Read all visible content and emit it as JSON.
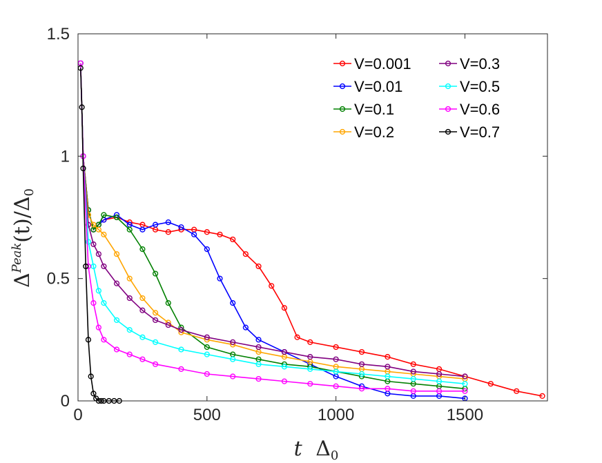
{
  "chart_data": {
    "type": "line",
    "xlabel": "t Δ₀",
    "ylabel": "Δ^Peak(t)/Δ₀",
    "xlim": [
      0,
      1820
    ],
    "ylim": [
      0,
      1.5
    ],
    "xticks": [
      0,
      500,
      1000,
      1500
    ],
    "yticks": [
      0,
      0.5,
      1,
      1.5
    ],
    "xtick_labels": [
      "0",
      "500",
      "1000",
      "1500"
    ],
    "ytick_labels": [
      "0",
      "0.5",
      "1",
      "1.5"
    ],
    "grid": false,
    "legend_position": "top-right",
    "legend_columns": 2,
    "series": [
      {
        "name": "V=0.001",
        "color": "#ff0000",
        "x": [
          10,
          20,
          40,
          60,
          80,
          100,
          150,
          200,
          250,
          300,
          350,
          400,
          450,
          500,
          550,
          600,
          650,
          700,
          750,
          800,
          850,
          900,
          1000,
          1100,
          1200,
          1300,
          1400,
          1500,
          1600,
          1700,
          1800
        ],
        "y": [
          1.38,
          1.0,
          0.78,
          0.7,
          0.72,
          0.74,
          0.75,
          0.73,
          0.72,
          0.7,
          0.69,
          0.7,
          0.7,
          0.69,
          0.68,
          0.66,
          0.6,
          0.55,
          0.47,
          0.38,
          0.26,
          0.24,
          0.22,
          0.2,
          0.18,
          0.15,
          0.13,
          0.1,
          0.07,
          0.04,
          0.02
        ]
      },
      {
        "name": "V=0.01",
        "color": "#0000ff",
        "x": [
          10,
          20,
          40,
          60,
          80,
          100,
          150,
          200,
          250,
          300,
          350,
          400,
          450,
          500,
          550,
          600,
          650,
          700,
          800,
          900,
          1000,
          1100,
          1200,
          1300,
          1400,
          1500
        ],
        "y": [
          1.38,
          1.0,
          0.78,
          0.7,
          0.72,
          0.74,
          0.76,
          0.72,
          0.7,
          0.72,
          0.73,
          0.71,
          0.68,
          0.62,
          0.5,
          0.4,
          0.3,
          0.25,
          0.2,
          0.15,
          0.1,
          0.06,
          0.03,
          0.02,
          0.02,
          0.01
        ]
      },
      {
        "name": "V=0.1",
        "color": "#008000",
        "x": [
          10,
          20,
          40,
          60,
          80,
          100,
          150,
          200,
          250,
          300,
          350,
          400,
          500,
          600,
          700,
          800,
          900,
          1000,
          1100,
          1200,
          1300,
          1400,
          1500
        ],
        "y": [
          1.38,
          1.0,
          0.78,
          0.7,
          0.72,
          0.76,
          0.75,
          0.7,
          0.62,
          0.52,
          0.4,
          0.3,
          0.22,
          0.19,
          0.17,
          0.15,
          0.14,
          0.12,
          0.1,
          0.08,
          0.07,
          0.06,
          0.05
        ]
      },
      {
        "name": "V=0.2",
        "color": "#ffa500",
        "x": [
          10,
          20,
          40,
          60,
          80,
          100,
          150,
          200,
          250,
          300,
          350,
          400,
          500,
          600,
          700,
          800,
          900,
          1000,
          1100,
          1200,
          1300,
          1400,
          1500
        ],
        "y": [
          1.38,
          1.0,
          0.76,
          0.72,
          0.7,
          0.68,
          0.6,
          0.5,
          0.42,
          0.36,
          0.32,
          0.28,
          0.25,
          0.23,
          0.2,
          0.18,
          0.16,
          0.14,
          0.13,
          0.12,
          0.11,
          0.1,
          0.09
        ]
      },
      {
        "name": "V=0.3",
        "color": "#800080",
        "x": [
          10,
          20,
          40,
          60,
          80,
          100,
          150,
          200,
          250,
          300,
          350,
          400,
          500,
          600,
          700,
          800,
          900,
          1000,
          1100,
          1200,
          1300,
          1400,
          1500
        ],
        "y": [
          1.38,
          1.0,
          0.72,
          0.64,
          0.6,
          0.55,
          0.48,
          0.42,
          0.37,
          0.33,
          0.31,
          0.29,
          0.26,
          0.24,
          0.22,
          0.2,
          0.18,
          0.17,
          0.15,
          0.14,
          0.12,
          0.11,
          0.1
        ]
      },
      {
        "name": "V=0.5",
        "color": "#00ffff",
        "x": [
          10,
          20,
          40,
          60,
          80,
          100,
          150,
          200,
          250,
          300,
          400,
          500,
          600,
          700,
          800,
          900,
          1000,
          1100,
          1200,
          1300,
          1400,
          1500
        ],
        "y": [
          1.38,
          1.0,
          0.65,
          0.55,
          0.45,
          0.4,
          0.33,
          0.29,
          0.26,
          0.24,
          0.21,
          0.19,
          0.17,
          0.15,
          0.14,
          0.13,
          0.12,
          0.11,
          0.1,
          0.09,
          0.08,
          0.07
        ]
      },
      {
        "name": "V=0.6",
        "color": "#ff00ff",
        "x": [
          10,
          20,
          40,
          60,
          80,
          100,
          150,
          200,
          250,
          300,
          400,
          500,
          600,
          700,
          800,
          900,
          1000,
          1100,
          1200,
          1300,
          1400,
          1500
        ],
        "y": [
          1.38,
          1.0,
          0.55,
          0.4,
          0.3,
          0.25,
          0.21,
          0.19,
          0.17,
          0.15,
          0.13,
          0.11,
          0.1,
          0.09,
          0.08,
          0.07,
          0.06,
          0.05,
          0.05,
          0.04,
          0.04,
          0.04
        ]
      },
      {
        "name": "V=0.7",
        "color": "#000000",
        "x": [
          10,
          15,
          20,
          30,
          40,
          50,
          60,
          70,
          80,
          90,
          100,
          120,
          140,
          160
        ],
        "y": [
          1.36,
          1.2,
          0.95,
          0.55,
          0.25,
          0.1,
          0.03,
          0.01,
          0.0,
          0.0,
          0.0,
          0.0,
          0.0,
          0.0
        ]
      }
    ]
  }
}
